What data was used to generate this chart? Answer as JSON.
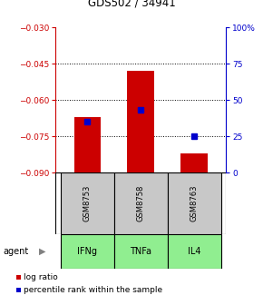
{
  "title": "GDS502 / 34941",
  "categories": [
    "GSM8753",
    "GSM8758",
    "GSM8763"
  ],
  "agents": [
    "IFNg",
    "TNFa",
    "IL4"
  ],
  "bar_bottoms": [
    -0.09,
    -0.09,
    -0.09
  ],
  "bar_tops": [
    -0.067,
    -0.048,
    -0.082
  ],
  "blue_y": [
    -0.069,
    -0.064,
    -0.075
  ],
  "ylim_left": [
    -0.09,
    -0.03
  ],
  "yticks_left": [
    -0.09,
    -0.075,
    -0.06,
    -0.045,
    -0.03
  ],
  "yticks_right": [
    0,
    25,
    50,
    75,
    100
  ],
  "bar_color": "#cc0000",
  "blue_color": "#0000cc",
  "gray_bg": "#c8c8c8",
  "green_bg": "#90ee90",
  "title_color": "#000000",
  "left_tick_color": "#cc0000",
  "right_tick_color": "#0000cc",
  "agent_label": "agent"
}
